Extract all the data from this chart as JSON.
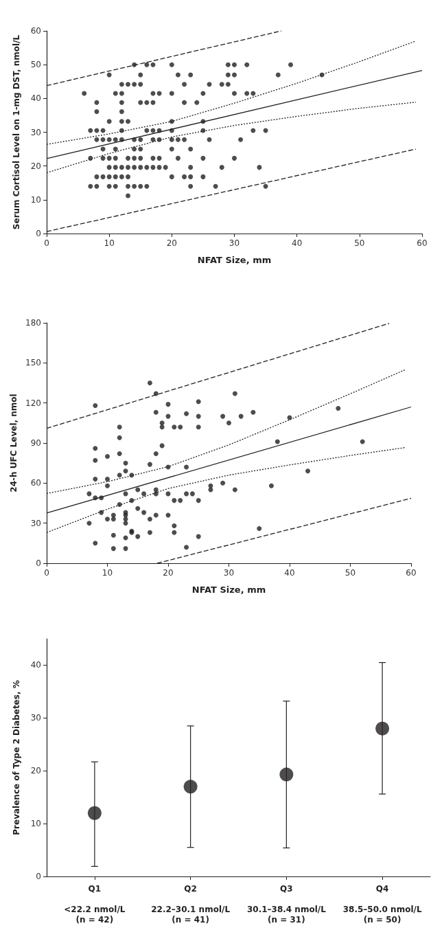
{
  "chart_data": [
    {
      "type": "scatter",
      "xlabel": "NFAT Size, mm",
      "ylabel": "Serum Cortisol Level on 1-mg DST, nmol/L",
      "xlim": [
        0,
        60
      ],
      "xticks": [
        0,
        10,
        20,
        30,
        40,
        50,
        60
      ],
      "ylim": [
        0,
        60
      ],
      "yticks": [
        0,
        10,
        20,
        30,
        40,
        50,
        60
      ],
      "marker": "circle",
      "series": [
        {
          "type": "scatter",
          "color": "#231f20",
          "x": [
            14,
            16,
            17,
            20,
            29,
            30,
            32,
            39,
            10,
            15,
            21,
            23,
            29,
            30,
            37,
            44,
            12,
            13,
            14,
            15,
            22,
            26,
            28,
            29,
            6,
            11,
            12,
            17,
            18,
            20,
            25,
            30,
            32,
            33,
            8,
            12,
            15,
            16,
            17,
            22,
            24,
            8,
            12,
            10,
            12,
            13,
            20,
            25,
            7,
            8,
            9,
            12,
            16,
            17,
            18,
            20,
            25,
            33,
            35,
            8,
            9,
            10,
            11,
            12,
            14,
            15,
            17,
            18,
            20,
            21,
            22,
            26,
            31,
            9,
            11,
            14,
            15,
            20,
            23,
            7,
            9,
            10,
            11,
            13,
            14,
            15,
            17,
            18,
            21,
            25,
            30,
            10,
            11,
            12,
            13,
            14,
            15,
            16,
            17,
            18,
            19,
            23,
            28,
            34,
            8,
            9,
            10,
            11,
            12,
            13,
            20,
            22,
            23,
            25,
            7,
            8,
            10,
            11,
            13,
            14,
            15,
            16,
            23,
            27,
            35,
            13
          ],
          "values": [
            50,
            50,
            50,
            50,
            50,
            50,
            50,
            50,
            47,
            47,
            47,
            47,
            47,
            47,
            47,
            47,
            44.2,
            44.2,
            44.2,
            44.2,
            44.2,
            44.2,
            44.2,
            44.2,
            41.5,
            41.5,
            41.5,
            41.5,
            41.5,
            41.5,
            41.5,
            41.5,
            41.5,
            41.5,
            38.8,
            38.8,
            38.8,
            38.8,
            38.8,
            38.8,
            38.8,
            36.1,
            36.1,
            33.2,
            33.2,
            33.2,
            33.2,
            33.2,
            30.5,
            30.5,
            30.5,
            30.5,
            30.5,
            30.5,
            30.5,
            30.5,
            30.5,
            30.5,
            30.5,
            27.8,
            27.8,
            27.8,
            27.8,
            27.8,
            27.8,
            27.8,
            27.8,
            27.8,
            27.8,
            27.8,
            27.8,
            27.8,
            27.8,
            25,
            25,
            25,
            25,
            25,
            25,
            22.3,
            22.3,
            22.3,
            22.3,
            22.3,
            22.3,
            22.3,
            22.3,
            22.3,
            22.3,
            22.3,
            22.3,
            19.6,
            19.6,
            19.6,
            19.6,
            19.6,
            19.6,
            19.6,
            19.6,
            19.6,
            19.6,
            19.6,
            19.6,
            19.6,
            16.8,
            16.8,
            16.8,
            16.8,
            16.8,
            16.8,
            16.8,
            16.8,
            16.8,
            16.8,
            14,
            14,
            14,
            14,
            14,
            14,
            14,
            14,
            14,
            14,
            14,
            11.2
          ]
        },
        {
          "type": "line",
          "color": "#231f20",
          "line_style": "solid",
          "marker": "none",
          "x": [
            0,
            60
          ],
          "values": [
            22.2,
            48.3
          ]
        },
        {
          "type": "line",
          "color": "#231f20",
          "line_style": "dotted",
          "marker": "none",
          "x": [
            0,
            10,
            20,
            30,
            40,
            50,
            59
          ],
          "values": [
            26.4,
            29.5,
            33.2,
            38.6,
            44.5,
            50.9,
            57
          ]
        },
        {
          "type": "line",
          "color": "#231f20",
          "line_style": "dotted",
          "marker": "none",
          "x": [
            0,
            10,
            20,
            30,
            40,
            50,
            59
          ],
          "values": [
            18,
            23.7,
            28.6,
            32,
            34.7,
            37.1,
            38.9
          ]
        },
        {
          "type": "line",
          "color": "#231f20",
          "line_style": "dashed",
          "marker": "none",
          "x": [
            0,
            37.5
          ],
          "values": [
            43.8,
            60
          ]
        },
        {
          "type": "line",
          "color": "#231f20",
          "line_style": "dashed",
          "marker": "none",
          "x": [
            0,
            59
          ],
          "values": [
            0.6,
            25
          ]
        }
      ]
    },
    {
      "type": "scatter",
      "xlabel": "NFAT Size, mm",
      "ylabel": "24-h UFC Level, nmol",
      "xlim": [
        0,
        60
      ],
      "xticks": [
        0,
        10,
        20,
        30,
        40,
        50,
        60
      ],
      "ylim": [
        0,
        180
      ],
      "yticks": [
        0,
        30,
        60,
        90,
        120,
        150,
        180
      ],
      "marker": "circle",
      "series": [
        {
          "type": "scatter",
          "color": "#231f20",
          "x": [
            17,
            18,
            8,
            20,
            25,
            31,
            18,
            20,
            23,
            25,
            29,
            30,
            32,
            19,
            19,
            21,
            22,
            25,
            12,
            12,
            8,
            12,
            18,
            19,
            8,
            10,
            13,
            17,
            20,
            23,
            13,
            14,
            12,
            8,
            10,
            10,
            7,
            8,
            9,
            15,
            16,
            18,
            18,
            20,
            23,
            24,
            13,
            27,
            27,
            29,
            31,
            21,
            22,
            25,
            14,
            12,
            9,
            15,
            16,
            17,
            18,
            20,
            10,
            11,
            11,
            13,
            13,
            13,
            13,
            7,
            21,
            21,
            17,
            14,
            14,
            15,
            11,
            13,
            25,
            8,
            11,
            13,
            23,
            34,
            40,
            48,
            38,
            52,
            43,
            37,
            35
          ],
          "values": [
            135,
            127,
            118,
            119,
            121,
            127,
            113,
            110,
            112,
            110,
            110,
            105,
            110,
            105,
            102,
            102,
            102,
            102,
            102,
            94,
            86,
            82,
            82,
            88,
            77,
            80,
            75,
            74,
            72,
            72,
            69,
            66,
            66,
            63,
            63,
            58,
            52,
            49,
            49,
            55,
            52,
            55,
            52,
            52,
            52,
            52,
            52,
            58,
            55,
            60,
            55,
            47,
            47,
            47,
            47,
            44,
            38,
            41,
            38,
            33,
            36,
            36,
            33,
            36,
            33,
            38,
            36,
            33,
            30,
            30,
            28,
            23,
            23,
            24,
            23,
            20,
            21,
            19,
            20,
            15,
            11,
            11,
            12,
            113,
            109,
            116,
            91,
            91,
            69,
            58,
            26
          ]
        },
        {
          "type": "line",
          "color": "#231f20",
          "line_style": "solid",
          "marker": "none",
          "x": [
            0,
            60
          ],
          "values": [
            37.6,
            117
          ]
        },
        {
          "type": "line",
          "color": "#231f20",
          "line_style": "dotted",
          "marker": "none",
          "x": [
            0,
            10,
            20,
            30,
            40,
            50,
            59
          ],
          "values": [
            52.2,
            61.1,
            72.3,
            88.6,
            107.4,
            126.9,
            144.8
          ]
        },
        {
          "type": "line",
          "color": "#231f20",
          "line_style": "dotted",
          "marker": "none",
          "x": [
            0,
            10,
            20,
            30,
            40,
            50,
            59
          ],
          "values": [
            23,
            40.5,
            55.9,
            66,
            73.6,
            80.7,
            86.6
          ]
        },
        {
          "type": "line",
          "color": "#231f20",
          "line_style": "dashed",
          "marker": "none",
          "x": [
            0,
            56.4
          ],
          "values": [
            101,
            179.6
          ]
        },
        {
          "type": "line",
          "color": "#231f20",
          "line_style": "dashed",
          "marker": "none",
          "x": [
            18.2,
            60
          ],
          "values": [
            0,
            48.6
          ]
        }
      ]
    },
    {
      "type": "scatter",
      "ylabel": "Prevalence of Type 2 Diabetes, %",
      "categories": [
        "Q1\n\n<22.2 nmol/L\n(n = 42)",
        "Q2\n\n22.2–30.1 nmol/L\n(n = 41)",
        "Q3\n\n30.1–38.4 nmol/L\n(n = 31)",
        "Q4\n\n38.5–50.0 nmol/L\n(n = 50)"
      ],
      "ylim": [
        0,
        45
      ],
      "yticks": [
        0,
        10,
        20,
        30,
        40
      ],
      "marker": "circle",
      "color": "#231f20",
      "values": [
        12,
        17,
        19.3,
        28
      ],
      "errors": [
        [
          1.9,
          21.7
        ],
        [
          5.5,
          28.5
        ],
        [
          5.4,
          33.2
        ],
        [
          15.6,
          40.5
        ]
      ]
    }
  ]
}
